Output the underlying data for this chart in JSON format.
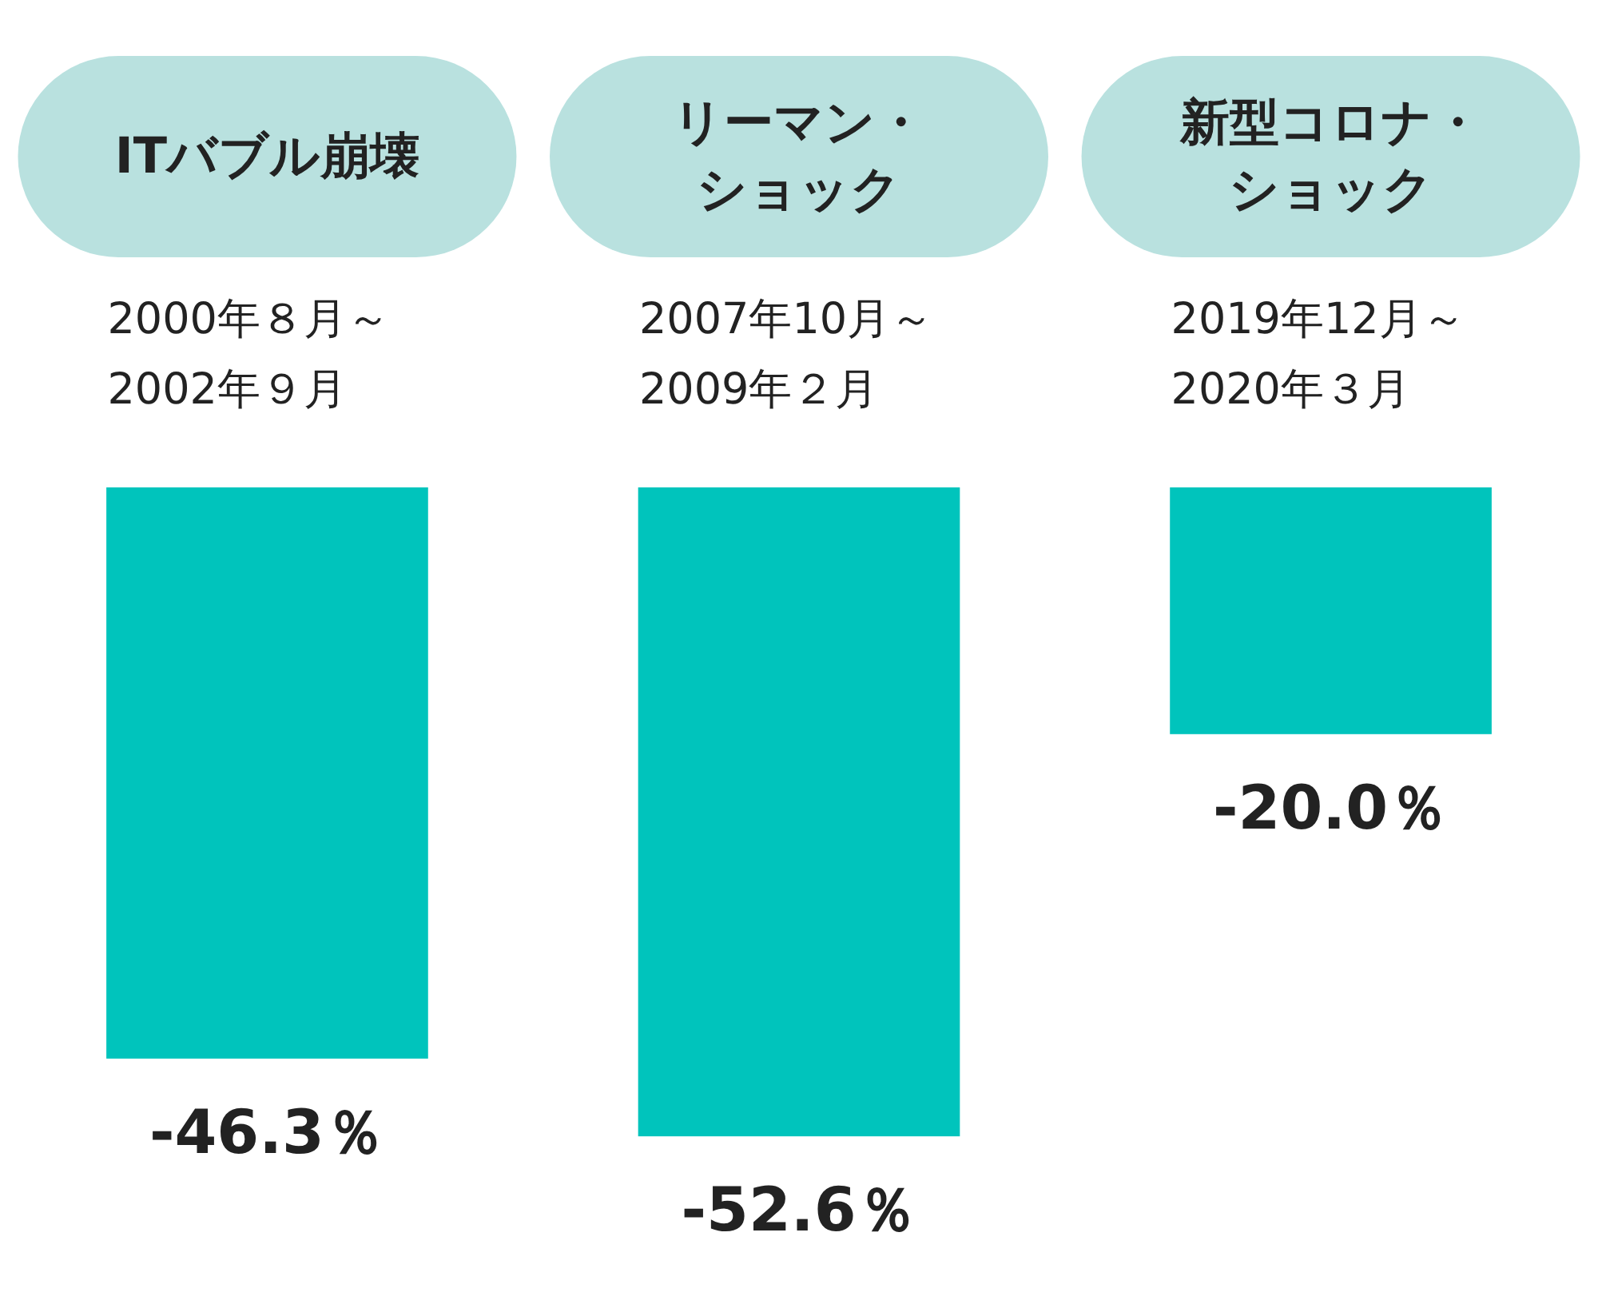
{
  "chart_data": {
    "type": "bar",
    "categories": [
      "ITバブル崩壊",
      "リーマン・ショック",
      "新型コロナ・ショック"
    ],
    "values": [
      -46.3,
      -52.6,
      -20.0
    ],
    "value_labels": [
      "-46.3％",
      "-52.6％",
      "-20.0％"
    ],
    "color": "#00c4bc",
    "annotations": [
      "2000年８月～2002年９月",
      "2007年10月～2009年２月",
      "2019年12月～2020年３月"
    ]
  }
}
